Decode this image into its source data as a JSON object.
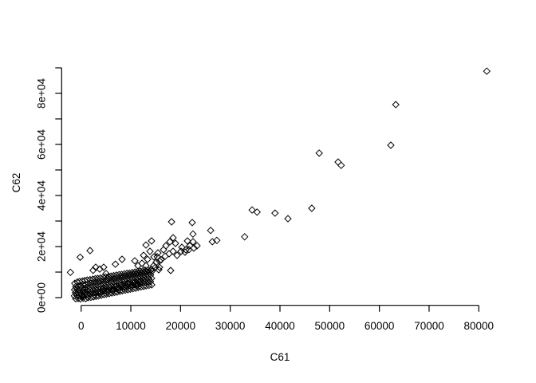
{
  "chart_data": {
    "type": "scatter",
    "title": "",
    "xlabel": "C61",
    "ylabel": "C62",
    "xlim": [
      0,
      80000
    ],
    "ylim": [
      0,
      90000
    ],
    "grid": false,
    "legend": "none",
    "marker": "open-diamond",
    "colors": {
      "point": "#000000",
      "axis": "#000000",
      "background": "#ffffff"
    },
    "x_ticks": [
      0,
      10000,
      20000,
      30000,
      40000,
      50000,
      60000,
      70000,
      80000
    ],
    "x_tick_labels": [
      "0",
      "10000",
      "20000",
      "30000",
      "40000",
      "50000",
      "60000",
      "70000",
      "80000"
    ],
    "y_ticks": [
      0,
      10000,
      20000,
      30000,
      40000,
      50000,
      60000,
      70000,
      80000,
      90000
    ],
    "y_tick_labels": [
      "0e+00",
      "",
      "2e+04",
      "",
      "4e+04",
      "",
      "6e+04",
      "",
      "8e+04",
      ""
    ],
    "points": [
      [
        -1100,
        -400
      ],
      [
        -1350,
        700
      ],
      [
        -1140,
        1900
      ],
      [
        -1320,
        3100
      ],
      [
        -1060,
        4300
      ],
      [
        -1260,
        5600
      ],
      [
        -600,
        -300
      ],
      [
        -850,
        900
      ],
      [
        -640,
        2100
      ],
      [
        -820,
        3300
      ],
      [
        -560,
        4600
      ],
      [
        -760,
        6100
      ],
      [
        -150,
        -500
      ],
      [
        -400,
        800
      ],
      [
        -190,
        2000
      ],
      [
        -370,
        3200
      ],
      [
        -110,
        4500
      ],
      [
        -310,
        6300
      ],
      [
        400,
        -200
      ],
      [
        150,
        1100
      ],
      [
        360,
        2400
      ],
      [
        180,
        3700
      ],
      [
        440,
        5000
      ],
      [
        240,
        6500
      ],
      [
        900,
        -400
      ],
      [
        650,
        1000
      ],
      [
        860,
        2300
      ],
      [
        680,
        3600
      ],
      [
        940,
        5100
      ],
      [
        740,
        6700
      ],
      [
        1400,
        0
      ],
      [
        1150,
        1300
      ],
      [
        1360,
        2700
      ],
      [
        1180,
        4100
      ],
      [
        1440,
        5500
      ],
      [
        1240,
        6900
      ],
      [
        1950,
        100
      ],
      [
        1700,
        1500
      ],
      [
        1910,
        2900
      ],
      [
        1730,
        4300
      ],
      [
        1990,
        5700
      ],
      [
        1790,
        7000
      ],
      [
        2500,
        300
      ],
      [
        2250,
        1700
      ],
      [
        2460,
        3100
      ],
      [
        2280,
        4500
      ],
      [
        2540,
        5900
      ],
      [
        2340,
        7200
      ],
      [
        3000,
        500
      ],
      [
        2750,
        1900
      ],
      [
        2960,
        3300
      ],
      [
        2780,
        4700
      ],
      [
        3040,
        6100
      ],
      [
        2840,
        7400
      ],
      [
        3500,
        700
      ],
      [
        3250,
        2100
      ],
      [
        3460,
        3500
      ],
      [
        3280,
        4900
      ],
      [
        3540,
        6300
      ],
      [
        3340,
        7500
      ],
      [
        4050,
        900
      ],
      [
        3800,
        2300
      ],
      [
        4010,
        3700
      ],
      [
        3830,
        5100
      ],
      [
        4090,
        6500
      ],
      [
        3890,
        7700
      ],
      [
        4600,
        1200
      ],
      [
        4350,
        2500
      ],
      [
        4560,
        3900
      ],
      [
        4380,
        5300
      ],
      [
        4640,
        6700
      ],
      [
        4440,
        7900
      ],
      [
        5100,
        1400
      ],
      [
        4850,
        2700
      ],
      [
        5060,
        4100
      ],
      [
        4880,
        5500
      ],
      [
        5140,
        6900
      ],
      [
        4940,
        8100
      ],
      [
        5650,
        1600
      ],
      [
        5400,
        2900
      ],
      [
        5610,
        4300
      ],
      [
        5430,
        5700
      ],
      [
        5690,
        7100
      ],
      [
        5490,
        8200
      ],
      [
        6200,
        1800
      ],
      [
        5950,
        3100
      ],
      [
        6160,
        4500
      ],
      [
        5980,
        5900
      ],
      [
        6240,
        7300
      ],
      [
        6040,
        8400
      ],
      [
        6700,
        2000
      ],
      [
        6450,
        3300
      ],
      [
        6660,
        4700
      ],
      [
        6480,
        6100
      ],
      [
        6740,
        7500
      ],
      [
        6540,
        8600
      ],
      [
        7250,
        2200
      ],
      [
        7000,
        3500
      ],
      [
        7210,
        4900
      ],
      [
        7030,
        6300
      ],
      [
        7290,
        7700
      ],
      [
        7090,
        8800
      ],
      [
        7800,
        2500
      ],
      [
        7550,
        3800
      ],
      [
        7760,
        5100
      ],
      [
        7580,
        6500
      ],
      [
        7840,
        7900
      ],
      [
        7640,
        9000
      ],
      [
        8300,
        2700
      ],
      [
        8050,
        4000
      ],
      [
        8260,
        5300
      ],
      [
        8080,
        6700
      ],
      [
        8340,
        8100
      ],
      [
        8140,
        9100
      ],
      [
        8850,
        2900
      ],
      [
        8600,
        4200
      ],
      [
        8810,
        5500
      ],
      [
        8630,
        6900
      ],
      [
        8890,
        8300
      ],
      [
        8690,
        9300
      ],
      [
        9400,
        3100
      ],
      [
        9150,
        4400
      ],
      [
        9360,
        5700
      ],
      [
        9180,
        7100
      ],
      [
        9440,
        8500
      ],
      [
        9240,
        9500
      ],
      [
        9900,
        3300
      ],
      [
        9650,
        4600
      ],
      [
        9860,
        5900
      ],
      [
        9680,
        7300
      ],
      [
        9940,
        8700
      ],
      [
        9740,
        9600
      ],
      [
        10450,
        3500
      ],
      [
        10200,
        4800
      ],
      [
        10410,
        6100
      ],
      [
        10230,
        7500
      ],
      [
        10490,
        8900
      ],
      [
        10290,
        9800
      ],
      [
        11000,
        3700
      ],
      [
        10750,
        5000
      ],
      [
        10960,
        6300
      ],
      [
        10780,
        7700
      ],
      [
        11040,
        9100
      ],
      [
        10840,
        10000
      ],
      [
        11500,
        4000
      ],
      [
        11250,
        5300
      ],
      [
        11460,
        6600
      ],
      [
        11280,
        7900
      ],
      [
        11540,
        9300
      ],
      [
        11340,
        10100
      ],
      [
        12050,
        4200
      ],
      [
        11800,
        5500
      ],
      [
        12010,
        6800
      ],
      [
        11830,
        8100
      ],
      [
        12090,
        9500
      ],
      [
        11890,
        10300
      ],
      [
        12600,
        4400
      ],
      [
        12350,
        5700
      ],
      [
        12560,
        7000
      ],
      [
        12380,
        8300
      ],
      [
        12640,
        9700
      ],
      [
        12440,
        10500
      ],
      [
        13100,
        4600
      ],
      [
        12850,
        5900
      ],
      [
        13060,
        7200
      ],
      [
        12880,
        8500
      ],
      [
        13140,
        9900
      ],
      [
        12940,
        10700
      ],
      [
        13650,
        4800
      ],
      [
        13400,
        6100
      ],
      [
        13610,
        7400
      ],
      [
        13430,
        8700
      ],
      [
        13690,
        10100
      ],
      [
        13490,
        10800
      ],
      [
        14200,
        5000
      ],
      [
        13950,
        6300
      ],
      [
        14160,
        7600
      ],
      [
        13980,
        8900
      ],
      [
        14240,
        10300
      ],
      [
        14040,
        11000
      ],
      [
        250,
        500
      ],
      [
        700,
        1800
      ],
      [
        1500,
        800
      ],
      [
        2100,
        2300
      ],
      [
        2700,
        1200
      ],
      [
        3200,
        2900
      ],
      [
        3900,
        1700
      ],
      [
        4400,
        3300
      ],
      [
        5200,
        2200
      ],
      [
        5800,
        3900
      ],
      [
        6400,
        2800
      ],
      [
        7000,
        4400
      ],
      [
        7600,
        3200
      ],
      [
        8100,
        5000
      ],
      [
        8900,
        3700
      ],
      [
        9500,
        5600
      ],
      [
        10100,
        4300
      ],
      [
        10700,
        6000
      ],
      [
        11300,
        4800
      ],
      [
        11900,
        6400
      ],
      [
        13040,
        20600
      ],
      [
        14170,
        22190
      ],
      [
        13850,
        18130
      ],
      [
        12560,
        16560
      ],
      [
        13370,
        15000
      ],
      [
        12240,
        13440
      ],
      [
        13040,
        12500
      ],
      [
        14650,
        15940
      ],
      [
        15450,
        17500
      ],
      [
        15770,
        14380
      ],
      [
        16580,
        18750
      ],
      [
        17060,
        20310
      ],
      [
        17860,
        21880
      ],
      [
        18500,
        23440
      ],
      [
        18980,
        21250
      ],
      [
        17700,
        17190
      ],
      [
        18500,
        18130
      ],
      [
        19300,
        16560
      ],
      [
        20100,
        18130
      ],
      [
        20270,
        19690
      ],
      [
        21070,
        18750
      ],
      [
        21870,
        20310
      ],
      [
        22510,
        21880
      ],
      [
        23310,
        20310
      ],
      [
        14170,
        10940
      ],
      [
        15770,
        11880
      ],
      [
        15610,
        10940
      ],
      [
        18020,
        10630
      ],
      [
        14600,
        12500
      ],
      [
        15100,
        13800
      ],
      [
        15300,
        16000
      ],
      [
        16100,
        14800
      ],
      [
        16900,
        16200
      ],
      [
        14900,
        11800
      ],
      [
        -2150,
        9900
      ],
      [
        -200,
        15800
      ],
      [
        1800,
        18400
      ],
      [
        2410,
        10700
      ],
      [
        2940,
        11900
      ],
      [
        3740,
        11200
      ],
      [
        4540,
        11900
      ],
      [
        5020,
        9400
      ],
      [
        8230,
        15000
      ],
      [
        10800,
        14400
      ],
      [
        11440,
        12500
      ],
      [
        6900,
        13100
      ],
      [
        18200,
        29700
      ],
      [
        22350,
        29400
      ],
      [
        22500,
        24900
      ],
      [
        21390,
        22200
      ],
      [
        21700,
        18800
      ],
      [
        20900,
        17800
      ],
      [
        22670,
        19400
      ],
      [
        26050,
        26300
      ],
      [
        26400,
        21900
      ],
      [
        27300,
        22400
      ],
      [
        32900,
        23800
      ],
      [
        34400,
        34300
      ],
      [
        35400,
        33500
      ],
      [
        39000,
        33100
      ],
      [
        41600,
        30900
      ],
      [
        46400,
        35000
      ],
      [
        47900,
        56600
      ],
      [
        51700,
        53100
      ],
      [
        52300,
        51800
      ],
      [
        62300,
        59700
      ],
      [
        63300,
        75600
      ],
      [
        81600,
        88700
      ]
    ]
  }
}
